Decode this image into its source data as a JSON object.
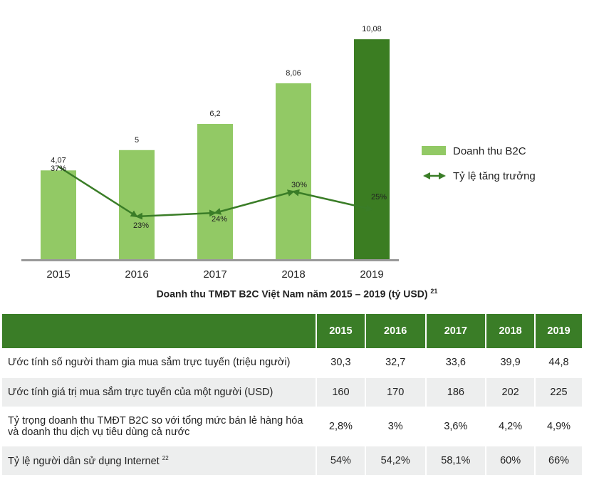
{
  "chart_data": {
    "type": "bar",
    "categories": [
      "2015",
      "2016",
      "2017",
      "2018",
      "2019"
    ],
    "series": [
      {
        "name": "Doanh thu B2C",
        "type": "bar",
        "values": [
          4.07,
          5,
          6.2,
          8.06,
          10.08
        ],
        "labels": [
          "4,07",
          "5",
          "6,2",
          "8,06",
          "10,08"
        ]
      },
      {
        "name": "Tỷ lệ tăng trưởng",
        "type": "line",
        "values": [
          37,
          23,
          24,
          30,
          25
        ],
        "labels": [
          "37%",
          "23%",
          "24%",
          "30%",
          "25%"
        ]
      }
    ],
    "colors": {
      "bar": "#92c965",
      "bar_highlight": "#3b7d22",
      "line": "#3a7d27",
      "axis": "#999999"
    },
    "highlight_category": "2019",
    "legend": "right",
    "ylim": [
      0,
      10.9
    ]
  },
  "caption": {
    "text": "Doanh thu TMĐT B2C Việt Nam năm 2015 – 2019 (tỷ USD)",
    "note": "21"
  },
  "table": {
    "header": [
      "",
      "2015",
      "2016",
      "2017",
      "2018",
      "2019"
    ],
    "rows": [
      {
        "label": "Ước tính số người tham gia mua sắm trực tuyến (triệu người)",
        "note": "",
        "values": [
          "30,3",
          "32,7",
          "33,6",
          "39,9",
          "44,8"
        ]
      },
      {
        "label": "Ước tính giá trị mua sắm trực tuyến của một người (USD)",
        "note": "",
        "values": [
          "160",
          "170",
          "186",
          "202",
          "225"
        ]
      },
      {
        "label": "Tỷ trọng doanh thu TMĐT B2C so với tổng mức bán lẻ hàng hóa và doanh thu dịch vụ tiêu dùng cả nước",
        "note": "",
        "values": [
          "2,8%",
          "3%",
          "3,6%",
          "4,2%",
          "4,9%"
        ]
      },
      {
        "label": "Tỷ lệ người dân sử dụng Internet",
        "note": "22",
        "values": [
          "54%",
          "54,2%",
          "58,1%",
          "60%",
          "66%"
        ]
      }
    ]
  }
}
